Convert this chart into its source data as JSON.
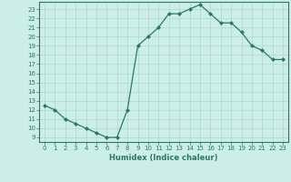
{
  "x": [
    0,
    1,
    2,
    3,
    4,
    5,
    6,
    7,
    8,
    9,
    10,
    11,
    12,
    13,
    14,
    15,
    16,
    17,
    18,
    19,
    20,
    21,
    22,
    23
  ],
  "y": [
    12.5,
    12.0,
    11.0,
    10.5,
    10.0,
    9.5,
    9.0,
    9.0,
    12.0,
    19.0,
    20.0,
    21.0,
    22.5,
    22.5,
    23.0,
    23.5,
    22.5,
    21.5,
    21.5,
    20.5,
    19.0,
    18.5,
    17.5,
    17.5
  ],
  "line_color": "#2a7a62",
  "marker": "D",
  "marker_size": 2.0,
  "bg_color": "#cceee8",
  "grid_color": "#aad8d0",
  "xlabel": "Humidex (Indice chaleur)",
  "ylabel_ticks": [
    9,
    10,
    11,
    12,
    13,
    14,
    15,
    16,
    17,
    18,
    19,
    20,
    21,
    22,
    23
  ],
  "xlim": [
    -0.5,
    23.5
  ],
  "ylim": [
    8.5,
    23.8
  ],
  "tick_fontsize": 5.0,
  "xlabel_fontsize": 6.0
}
